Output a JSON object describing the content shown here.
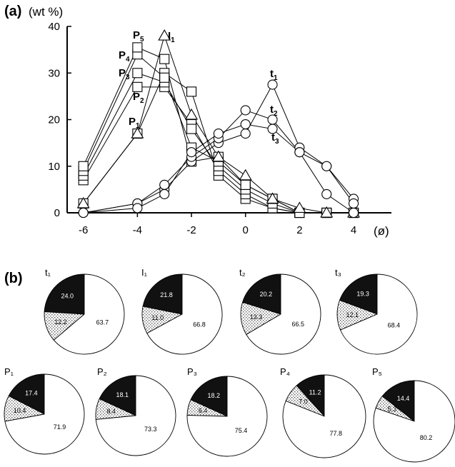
{
  "panel_a": {
    "label": "(a)",
    "unit": "(wt %)",
    "x_unit": "(ø)"
  },
  "panel_b": {
    "label": "(b)"
  },
  "chart_data": [
    {
      "type": "line",
      "ylabel": "(wt %)",
      "xlabel": "(ø)",
      "xlim": [
        -6.6,
        5.4
      ],
      "ylim": [
        0,
        40
      ],
      "xticks": [
        -6,
        -4,
        -2,
        0,
        2,
        4
      ],
      "yticks": [
        0,
        10,
        20,
        30,
        40
      ],
      "grid": false,
      "series": [
        {
          "name": "P1",
          "marker": "square",
          "x": [
            -6,
            -4,
            -3,
            -2,
            -1,
            0,
            1,
            2,
            3,
            4
          ],
          "y": [
            2,
            17,
            30,
            26,
            8,
            3,
            1,
            0,
            0,
            0
          ]
        },
        {
          "name": "P2",
          "marker": "square",
          "x": [
            -6,
            -4,
            -3,
            -2,
            -1,
            0,
            1,
            2,
            3,
            4
          ],
          "y": [
            7,
            27,
            27,
            19,
            9,
            4,
            1,
            0,
            0,
            0
          ]
        },
        {
          "name": "P3",
          "marker": "square",
          "x": [
            -6,
            -4,
            -3,
            -2,
            -1,
            0,
            1,
            2,
            3,
            4
          ],
          "y": [
            8,
            30,
            28,
            18,
            10,
            5,
            2,
            0,
            0,
            0
          ]
        },
        {
          "name": "P4",
          "marker": "square",
          "x": [
            -6,
            -4,
            -3,
            -2,
            -1,
            0,
            1,
            2,
            3,
            4
          ],
          "y": [
            9,
            34,
            29,
            14,
            11,
            6,
            3,
            0,
            0,
            0
          ]
        },
        {
          "name": "P5",
          "marker": "square",
          "x": [
            -6,
            -4,
            -3,
            -2,
            -1,
            0,
            1,
            2,
            3,
            4
          ],
          "y": [
            10,
            35.5,
            33,
            11,
            12,
            6,
            3,
            0,
            0,
            0
          ]
        },
        {
          "name": "I1",
          "marker": "triangle",
          "x": [
            -6,
            -4,
            -3,
            -2,
            -1,
            0,
            1,
            2,
            3,
            4
          ],
          "y": [
            2,
            17,
            38,
            21,
            12,
            8,
            3,
            1,
            0,
            0
          ]
        },
        {
          "name": "t1",
          "marker": "circle",
          "x": [
            -6,
            -4,
            -3,
            -2,
            -1,
            0,
            1,
            2,
            3,
            4
          ],
          "y": [
            0,
            2,
            5,
            11,
            15,
            17,
            27.5,
            14,
            10,
            3
          ]
        },
        {
          "name": "t2",
          "marker": "circle",
          "x": [
            -6,
            -4,
            -3,
            -2,
            -1,
            0,
            1,
            2,
            3,
            4
          ],
          "y": [
            0,
            2,
            6,
            12,
            16,
            22,
            20,
            13,
            10,
            2
          ]
        },
        {
          "name": "t3",
          "marker": "circle",
          "x": [
            -6,
            -4,
            -3,
            -2,
            -1,
            0,
            1,
            2,
            3,
            4
          ],
          "y": [
            0,
            1,
            4,
            13,
            17,
            19,
            18,
            13,
            4,
            0
          ]
        }
      ]
    },
    {
      "type": "pie",
      "pies": [
        {
          "title": "t₁",
          "values": [
            24.0,
            12.2,
            63.7
          ],
          "labels": [
            "24.0",
            "12.2",
            "63.7"
          ]
        },
        {
          "title": "I₁",
          "values": [
            21.8,
            11.0,
            66.8
          ],
          "labels": [
            "21.8",
            "11.0",
            "66.8"
          ]
        },
        {
          "title": "t₂",
          "values": [
            20.2,
            13.3,
            66.5
          ],
          "labels": [
            "20.2",
            "13.3",
            "66.5"
          ]
        },
        {
          "title": "t₃",
          "values": [
            19.3,
            12.1,
            68.4
          ],
          "labels": [
            "19.3",
            "12.1",
            "68.4"
          ]
        },
        {
          "title": "P₁",
          "values": [
            17.4,
            10.4,
            71.9
          ],
          "labels": [
            "17.4",
            "10.4",
            "71.9"
          ]
        },
        {
          "title": "P₂",
          "values": [
            18.1,
            8.4,
            73.3
          ],
          "labels": [
            "18.1",
            "8.4",
            "73.3"
          ]
        },
        {
          "title": "P₃",
          "values": [
            18.2,
            6.4,
            75.4
          ],
          "labels": [
            "18.2",
            "6.4",
            "75.4"
          ]
        },
        {
          "title": "P₄",
          "values": [
            11.2,
            7.0,
            77.8
          ],
          "labels": [
            "11.2",
            "7.0",
            "77.8"
          ]
        },
        {
          "title": "P₅",
          "values": [
            14.4,
            5.3,
            80.2
          ],
          "labels": [
            "14.4",
            "5.3",
            "80.2"
          ]
        }
      ],
      "slice_colors": [
        "#111111",
        "stipple",
        "#ffffff"
      ]
    }
  ]
}
